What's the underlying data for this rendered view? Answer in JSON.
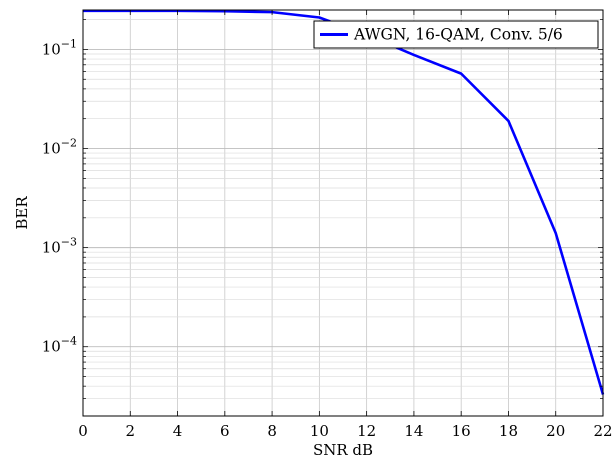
{
  "chart_data": {
    "type": "line",
    "xlabel": "SNR dB",
    "ylabel": "BER",
    "y_scale": "log",
    "xlim": [
      0,
      22
    ],
    "ylim": [
      2e-05,
      0.25
    ],
    "x_ticks": [
      0,
      2,
      4,
      6,
      8,
      10,
      12,
      14,
      16,
      18,
      20,
      22
    ],
    "y_ticks": [
      {
        "value": 0.1,
        "base": "10",
        "exp": "−1"
      },
      {
        "value": 0.01,
        "base": "10",
        "exp": "−2"
      },
      {
        "value": 0.001,
        "base": "10",
        "exp": "−3"
      },
      {
        "value": 0.0001,
        "base": "10",
        "exp": "−4"
      }
    ],
    "grid": true,
    "legend_position": "top-right",
    "series": [
      {
        "name": "AWGN, 16-QAM, Conv. 5/6",
        "color": "#0000ff",
        "x": [
          0,
          2,
          4,
          6,
          8,
          10,
          12,
          14,
          16,
          18,
          20,
          22
        ],
        "y": [
          0.245,
          0.245,
          0.245,
          0.243,
          0.238,
          0.21,
          0.14,
          0.088,
          0.057,
          0.019,
          0.0014,
          3.3e-05
        ]
      }
    ]
  }
}
